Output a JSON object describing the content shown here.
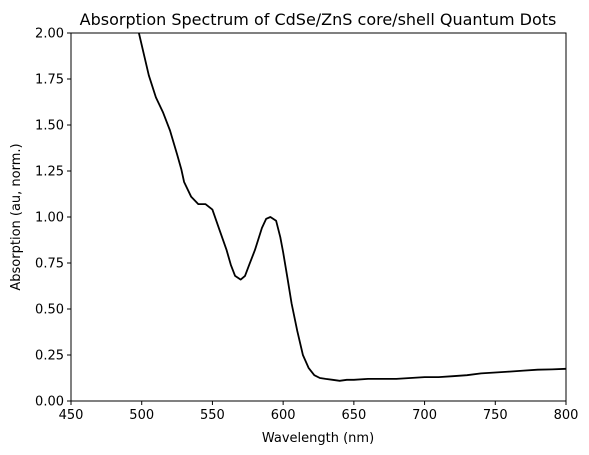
{
  "chart_data": {
    "type": "line",
    "title": "Absorption Spectrum of CdSe/ZnS core/shell Quantum Dots",
    "xlabel": "Wavelength (nm)",
    "ylabel": "Absorption (au, norm.)",
    "xlim": [
      450,
      800
    ],
    "ylim": [
      0,
      2
    ],
    "xticks": [
      450,
      500,
      550,
      600,
      650,
      700,
      750,
      800
    ],
    "xtick_labels": [
      "450",
      "500",
      "550",
      "600",
      "650",
      "700",
      "750",
      "800"
    ],
    "yticks": [
      0,
      0.25,
      0.5,
      0.75,
      1.0,
      1.25,
      1.5,
      1.75,
      2.0
    ],
    "ytick_labels": [
      "0.00",
      "0.25",
      "0.50",
      "0.75",
      "1.00",
      "1.25",
      "1.50",
      "1.75",
      "2.00"
    ],
    "grid": false,
    "line_color": "#000000",
    "series": [
      {
        "x": [
          498,
          502,
          505,
          510,
          515,
          520,
          525,
          528,
          530,
          535,
          540,
          545,
          550,
          555,
          560,
          563,
          566,
          570,
          573,
          576,
          580,
          585,
          588,
          591,
          595,
          598,
          600,
          603,
          606,
          610,
          614,
          618,
          622,
          626,
          630,
          635,
          640,
          645,
          650,
          660,
          670,
          680,
          690,
          700,
          710,
          720,
          730,
          740,
          750,
          760,
          770,
          780,
          790,
          800
        ],
        "y": [
          2.0,
          1.87,
          1.77,
          1.65,
          1.57,
          1.47,
          1.34,
          1.26,
          1.19,
          1.11,
          1.07,
          1.07,
          1.04,
          0.93,
          0.82,
          0.74,
          0.68,
          0.66,
          0.68,
          0.74,
          0.82,
          0.94,
          0.99,
          1.0,
          0.98,
          0.89,
          0.81,
          0.67,
          0.53,
          0.38,
          0.25,
          0.18,
          0.14,
          0.125,
          0.12,
          0.115,
          0.11,
          0.115,
          0.115,
          0.12,
          0.12,
          0.12,
          0.125,
          0.13,
          0.13,
          0.135,
          0.14,
          0.15,
          0.155,
          0.16,
          0.165,
          0.17,
          0.172,
          0.175
        ]
      }
    ]
  }
}
